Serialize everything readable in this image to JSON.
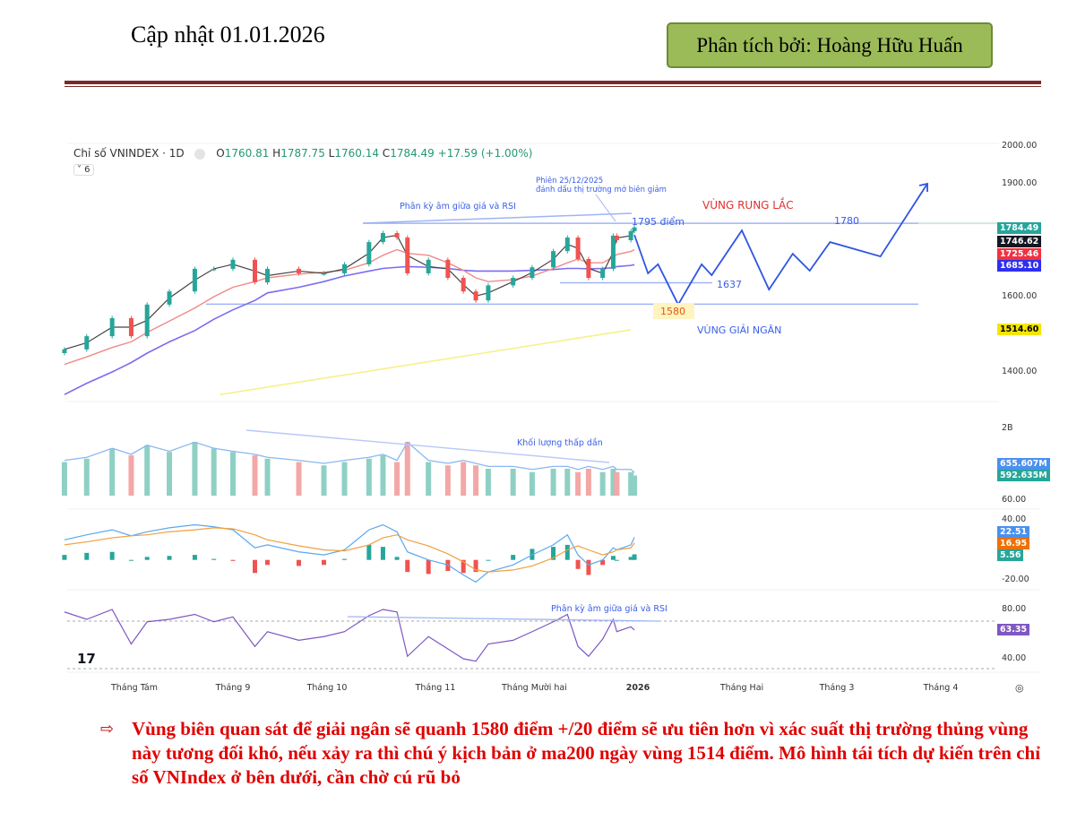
{
  "header": {
    "updated": "Cập nhật 01.01.2026",
    "author": "Phân tích bởi: Hoàng Hữu Huấn"
  },
  "colors": {
    "author_bg": "#9bbb59",
    "rule": "#7a2a2a",
    "up": "#26a69a",
    "down": "#ef5350",
    "forecast": "#2f55e4",
    "bullet_text": "#e00000"
  },
  "chart_data": {
    "type": "candlestick",
    "symbol": "Chỉ số VNINDEX · 1D",
    "ohlc": {
      "o_label": "O",
      "o": "1760.81",
      "h_label": "H",
      "h": "1787.75",
      "l_label": "L",
      "l": "1760.14",
      "c_label": "C",
      "c": "1784.49",
      "change": "+17.59 (+1.00%)"
    },
    "indicators_collapsed": "˅ 6",
    "x_ticks": [
      "Tháng Tám",
      "Tháng 9",
      "Tháng 10",
      "Tháng 11",
      "Tháng Mười hai",
      "2026",
      "Tháng Hai",
      "Tháng 3",
      "Tháng 4"
    ],
    "price_ticks": [
      "2000.00",
      "1900.00",
      "1600.00",
      "1400.00"
    ],
    "ylim": [
      1330,
      2010
    ],
    "dates": [
      "2025-07-10",
      "2025-07-17",
      "2025-07-25",
      "2025-07-31",
      "2025-08-05",
      "2025-08-12",
      "2025-08-20",
      "2025-08-26",
      "2025-09-01",
      "2025-09-08",
      "2025-09-12",
      "2025-09-22",
      "2025-09-30",
      "2025-10-06",
      "2025-10-13",
      "2025-10-17",
      "2025-10-21",
      "2025-10-24",
      "2025-10-30",
      "2025-11-05",
      "2025-11-10",
      "2025-11-14",
      "2025-11-18",
      "2025-11-26",
      "2025-12-02",
      "2025-12-08",
      "2025-12-12",
      "2025-12-15",
      "2025-12-18",
      "2025-12-22",
      "2025-12-25",
      "2025-12-26",
      "2025-12-30",
      "2025-12-31"
    ],
    "close": [
      1460,
      1495,
      1543,
      1495,
      1579,
      1614,
      1674,
      1674,
      1698,
      1638,
      1674,
      1662,
      1662,
      1686,
      1745,
      1769,
      1757,
      1662,
      1698,
      1650,
      1614,
      1590,
      1630,
      1650,
      1678,
      1721,
      1757,
      1700,
      1650,
      1674,
      1762,
      1750,
      1774,
      1784
    ],
    "ma_purple": [
      1340,
      1370,
      1400,
      1425,
      1450,
      1480,
      1510,
      1540,
      1565,
      1590,
      1610,
      1625,
      1640,
      1655,
      1668,
      1675,
      1678,
      1680,
      1678,
      1675,
      1670,
      1668,
      1668,
      1668,
      1670,
      1672,
      1675,
      1675,
      1674,
      1675,
      1677,
      1680,
      1683,
      1685
    ],
    "ma_red": [
      1420,
      1440,
      1465,
      1480,
      1505,
      1535,
      1570,
      1600,
      1625,
      1640,
      1650,
      1660,
      1665,
      1670,
      1690,
      1710,
      1725,
      1715,
      1710,
      1690,
      1670,
      1650,
      1640,
      1645,
      1655,
      1675,
      1690,
      1700,
      1690,
      1690,
      1705,
      1712,
      1720,
      1725
    ],
    "ma_yellow": {
      "dates": [
        "2025-08-28",
        "2025-12-30"
      ],
      "values": [
        1340,
        1512
      ]
    },
    "last_values": [
      {
        "value": "1784.49",
        "color": "#26a69a"
      },
      {
        "value": "1746.62",
        "color": "#131722"
      },
      {
        "value": "1725.46",
        "color": "#ef3340"
      },
      {
        "value": "1685.10",
        "color": "#2f2ff0"
      },
      {
        "value": "1514.60",
        "color": "#f5e600",
        "text_color": "#000"
      }
    ],
    "levels": [
      {
        "value": 1795,
        "label": "1795 điểm"
      },
      {
        "value": 1637,
        "label": "1637"
      },
      {
        "value": 1580,
        "label": "1580"
      }
    ],
    "forecast": {
      "dates": [
        "2025-12-31",
        "2026-01-04",
        "2026-01-07",
        "2026-01-13",
        "2026-01-20",
        "2026-01-23",
        "2026-02-01",
        "2026-02-09",
        "2026-02-16",
        "2026-02-21",
        "2026-02-27",
        "2026-03-14",
        "2026-03-28"
      ],
      "values": [
        1764,
        1662,
        1686,
        1579,
        1686,
        1657,
        1776,
        1619,
        1714,
        1669,
        1745,
        1707,
        1900
      ],
      "label": "1780"
    },
    "annotations": {
      "divergence_price": "Phân kỳ âm giữa giá và RSI",
      "session_line1": "Phiên 25/12/2025",
      "session_line2": "đánh dấu thị trường mở biên giảm",
      "shake_zone": "VÙNG RUNG LẮC",
      "disburse_zone": "VÙNG GIẢI NGÂN",
      "volume_note": "Khối lượng thấp dần",
      "divergence_rsi": "Phân kỳ âm giữa giá và RSI"
    },
    "volume": {
      "tick": "2B",
      "values_b": [
        1.0,
        1.1,
        1.4,
        1.2,
        1.5,
        1.3,
        1.6,
        1.4,
        1.3,
        1.2,
        1.1,
        1.0,
        0.9,
        1.0,
        1.1,
        1.2,
        1.0,
        1.6,
        1.0,
        0.9,
        1.0,
        0.9,
        0.8,
        0.8,
        0.7,
        0.8,
        0.8,
        0.7,
        0.8,
        0.7,
        0.8,
        0.7,
        0.7,
        0.6
      ],
      "ma_label": "655.607M",
      "last_label": "592.635M"
    },
    "macd": {
      "ticks": [
        "60.00",
        "40.00",
        "-20.00"
      ],
      "macd": [
        20,
        25,
        30,
        24,
        28,
        32,
        35,
        33,
        30,
        12,
        15,
        8,
        5,
        10,
        30,
        35,
        28,
        8,
        0,
        -5,
        -15,
        -22,
        -12,
        -5,
        5,
        15,
        25,
        5,
        -5,
        0,
        12,
        10,
        15,
        22.51
      ],
      "signal": [
        15,
        18,
        22,
        24,
        25,
        28,
        30,
        32,
        31,
        25,
        20,
        14,
        10,
        9,
        15,
        22,
        25,
        20,
        14,
        6,
        -2,
        -10,
        -12,
        -10,
        -6,
        2,
        10,
        14,
        10,
        5,
        8,
        10,
        12,
        16.95
      ],
      "labels": [
        "22.51",
        "16.95",
        "5.56"
      ]
    },
    "rsi": {
      "ticks": [
        "80.00",
        "40.00"
      ],
      "values": [
        78,
        72,
        80,
        52,
        70,
        72,
        76,
        70,
        74,
        50,
        62,
        55,
        58,
        62,
        75,
        80,
        78,
        42,
        58,
        48,
        40,
        38,
        52,
        55,
        62,
        70,
        76,
        50,
        42,
        56,
        72,
        62,
        66,
        63.35
      ],
      "label": "63.35"
    }
  },
  "bullet": {
    "text": "Vùng biên quan sát để giải ngân sẽ quanh 1580 điểm +/20 điểm sẽ ưu tiên hơn vì xác suất thị trường thủng vùng này tương đối khó, nếu xảy ra thì chú ý kịch bản ở ma200 ngày vùng 1514 điểm. Mô hình tái tích dự kiến trên chỉ số VNIndex ở bên dưới, cần chờ cú rũ bỏ"
  }
}
